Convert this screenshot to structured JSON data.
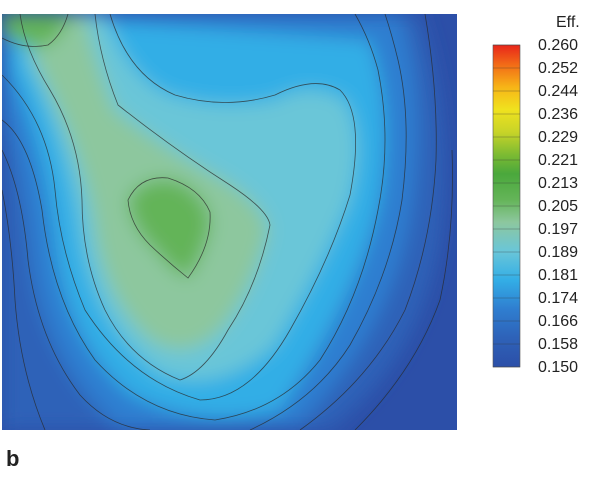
{
  "panel_label": "b",
  "chart_data": {
    "type": "heatmap",
    "title": "",
    "xlabel": "",
    "ylabel": "",
    "colorbar": {
      "title": "Eff.",
      "ticks": [
        "0.260",
        "0.252",
        "0.244",
        "0.236",
        "0.229",
        "0.221",
        "0.213",
        "0.205",
        "0.197",
        "0.189",
        "0.181",
        "0.174",
        "0.166",
        "0.158",
        "0.150"
      ],
      "min": 0.15,
      "max": 0.26
    },
    "colors": {
      "0.150": "#2c4fa8",
      "0.158": "#2e62b8",
      "0.166": "#2f7ed0",
      "0.174": "#33aee6",
      "0.181": "#6ac6d8",
      "0.189": "#8dc79e",
      "0.197": "#64b458",
      "0.205": "#4aa83c",
      "0.213": "#4ea63a",
      "0.221": "#7dbb32",
      "0.229": "#c8d428",
      "0.236": "#f0e21e",
      "0.244": "#f7b417",
      "0.252": "#f26a17",
      "0.260": "#e8261a"
    },
    "contours": [
      {
        "level": 0.15,
        "name": "contour-0150"
      },
      {
        "level": 0.158,
        "name": "contour-0158"
      },
      {
        "level": 0.166,
        "name": "contour-0166"
      },
      {
        "level": 0.174,
        "name": "contour-0174"
      },
      {
        "level": 0.181,
        "name": "contour-0181"
      },
      {
        "level": 0.189,
        "name": "contour-0189"
      },
      {
        "level": 0.197,
        "name": "contour-0197"
      }
    ]
  }
}
